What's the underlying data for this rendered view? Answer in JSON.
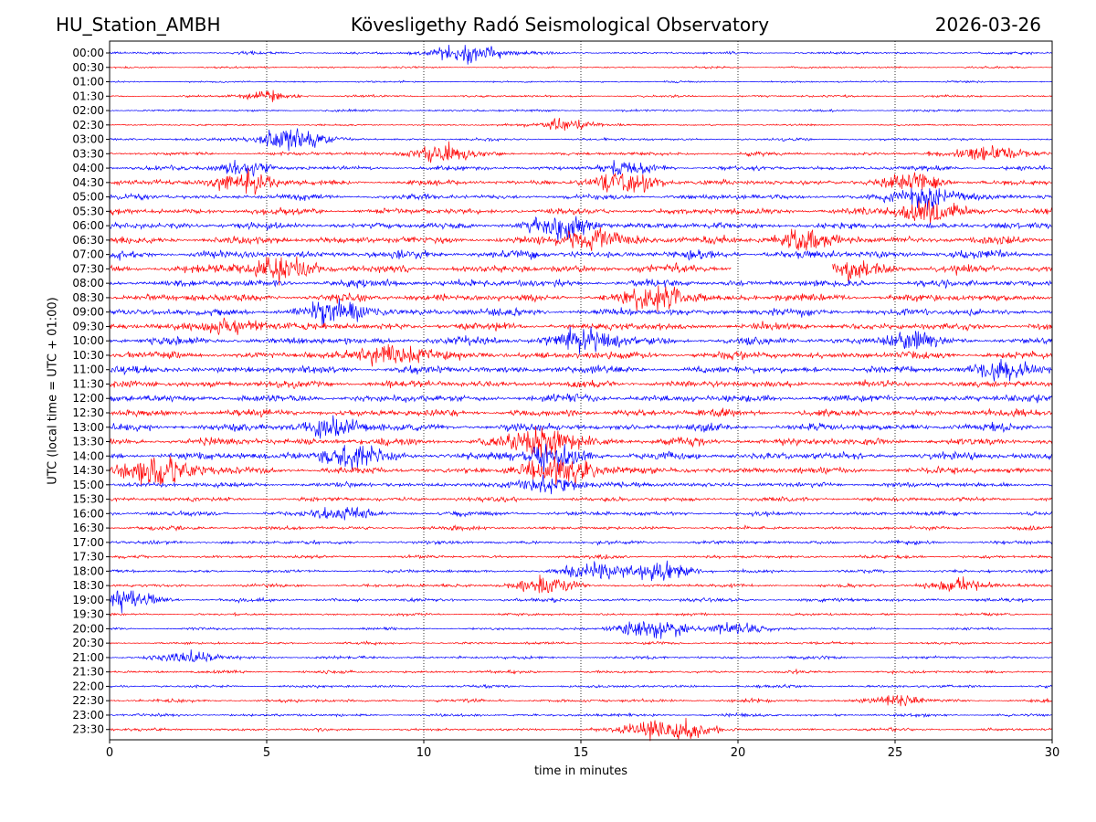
{
  "header": {
    "station": "HU_Station_AMBH",
    "title": "Kövesligethy Radó Seismological Observatory",
    "date": "2026-03-26"
  },
  "chart_data": {
    "type": "line",
    "subtype": "helicorder",
    "xlabel": "time in minutes",
    "ylabel": "UTC (local time = UTC + 01:00)",
    "xlim": [
      0,
      30
    ],
    "xticks": [
      0,
      5,
      10,
      15,
      20,
      25,
      30
    ],
    "grid": "vertical dotted lines at 5-minute intervals",
    "row_labels": [
      "00:00",
      "00:30",
      "01:00",
      "01:30",
      "02:00",
      "02:30",
      "03:00",
      "03:30",
      "04:00",
      "04:30",
      "05:00",
      "05:30",
      "06:00",
      "06:30",
      "07:00",
      "07:30",
      "08:00",
      "08:30",
      "09:00",
      "09:30",
      "10:00",
      "10:30",
      "11:00",
      "11:30",
      "12:00",
      "12:30",
      "13:00",
      "13:30",
      "14:00",
      "14:30",
      "15:00",
      "15:30",
      "16:00",
      "16:30",
      "17:00",
      "17:30",
      "18:00",
      "18:30",
      "19:00",
      "19:30",
      "20:00",
      "20:30",
      "21:00",
      "21:30",
      "22:00",
      "22:30",
      "23:00",
      "23:30"
    ],
    "trace_colors": [
      "#0000ff",
      "#ff0000"
    ],
    "noise_level": [
      0.35,
      0.25,
      0.25,
      0.3,
      0.3,
      0.25,
      0.35,
      0.5,
      0.6,
      0.7,
      0.7,
      0.8,
      0.9,
      1.0,
      1.1,
      1.1,
      1.0,
      1.0,
      1.0,
      1.0,
      1.0,
      1.0,
      1.0,
      1.0,
      1.0,
      1.0,
      1.0,
      1.0,
      1.0,
      0.9,
      0.7,
      0.6,
      0.6,
      0.5,
      0.5,
      0.45,
      0.45,
      0.45,
      0.5,
      0.35,
      0.35,
      0.35,
      0.4,
      0.4,
      0.4,
      0.45,
      0.4,
      0.4
    ],
    "events": [
      {
        "row": 0,
        "minute": 11.5,
        "amplitude": 3.0
      },
      {
        "row": 3,
        "minute": 5.0,
        "amplitude": 1.5
      },
      {
        "row": 5,
        "minute": 14.5,
        "amplitude": 1.8
      },
      {
        "row": 6,
        "minute": 5.8,
        "amplitude": 3.5
      },
      {
        "row": 7,
        "minute": 10.5,
        "amplitude": 2.5
      },
      {
        "row": 7,
        "minute": 28.0,
        "amplitude": 2.5
      },
      {
        "row": 8,
        "minute": 4.2,
        "amplitude": 2.0
      },
      {
        "row": 8,
        "minute": 16.5,
        "amplitude": 2.0
      },
      {
        "row": 9,
        "minute": 4.2,
        "amplitude": 3.0
      },
      {
        "row": 9,
        "minute": 16.5,
        "amplitude": 3.0
      },
      {
        "row": 9,
        "minute": 25.5,
        "amplitude": 2.5
      },
      {
        "row": 10,
        "minute": 26.0,
        "amplitude": 3.0
      },
      {
        "row": 11,
        "minute": 26.0,
        "amplitude": 3.0
      },
      {
        "row": 12,
        "minute": 14.5,
        "amplitude": 3.0
      },
      {
        "row": 13,
        "minute": 15.5,
        "amplitude": 3.0
      },
      {
        "row": 13,
        "minute": 22.0,
        "amplitude": 2.5
      },
      {
        "row": 15,
        "minute": 5.5,
        "amplitude": 3.0
      },
      {
        "row": 15,
        "minute": 24.0,
        "amplitude": 2.0
      },
      {
        "row": 17,
        "minute": 17.5,
        "amplitude": 3.0
      },
      {
        "row": 18,
        "minute": 7.2,
        "amplitude": 3.0
      },
      {
        "row": 19,
        "minute": 4.0,
        "amplitude": 2.0
      },
      {
        "row": 20,
        "minute": 15.0,
        "amplitude": 3.0
      },
      {
        "row": 20,
        "minute": 25.5,
        "amplitude": 2.0
      },
      {
        "row": 21,
        "minute": 9.0,
        "amplitude": 3.0
      },
      {
        "row": 22,
        "minute": 28.5,
        "amplitude": 2.5
      },
      {
        "row": 26,
        "minute": 7.0,
        "amplitude": 2.5
      },
      {
        "row": 27,
        "minute": 13.8,
        "amplitude": 4.0
      },
      {
        "row": 28,
        "minute": 7.5,
        "amplitude": 3.0
      },
      {
        "row": 28,
        "minute": 14.0,
        "amplitude": 3.0
      },
      {
        "row": 29,
        "minute": 1.5,
        "amplitude": 4.0
      },
      {
        "row": 29,
        "minute": 14.5,
        "amplitude": 3.5
      },
      {
        "row": 30,
        "minute": 14.2,
        "amplitude": 2.5
      },
      {
        "row": 32,
        "minute": 7.5,
        "amplitude": 2.0
      },
      {
        "row": 36,
        "minute": 15.5,
        "amplitude": 2.5
      },
      {
        "row": 36,
        "minute": 17.5,
        "amplitude": 2.5
      },
      {
        "row": 37,
        "minute": 13.7,
        "amplitude": 2.5
      },
      {
        "row": 37,
        "minute": 27.0,
        "amplitude": 2.0
      },
      {
        "row": 38,
        "minute": 0.5,
        "amplitude": 2.5
      },
      {
        "row": 40,
        "minute": 17.2,
        "amplitude": 3.0
      },
      {
        "row": 40,
        "minute": 20.0,
        "amplitude": 2.0
      },
      {
        "row": 42,
        "minute": 2.5,
        "amplitude": 2.0
      },
      {
        "row": 45,
        "minute": 25.0,
        "amplitude": 1.5
      },
      {
        "row": 47,
        "minute": 17.8,
        "amplitude": 3.5
      }
    ],
    "gaps": [
      {
        "row": 15,
        "start_minute": 19.8,
        "end_minute": 23.0
      }
    ]
  }
}
